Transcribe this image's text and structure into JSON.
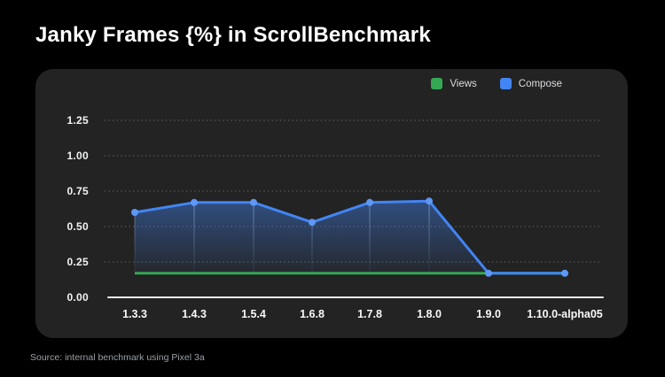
{
  "title": "Janky Frames {%} in ScrollBenchmark",
  "footer": "Source: internal benchmark using Pixel 3a",
  "legend": [
    {
      "label": "Views",
      "color": "#34a853"
    },
    {
      "label": "Compose",
      "color": "#4285f4"
    }
  ],
  "chart_data": {
    "type": "line",
    "title": "Janky Frames {%} in ScrollBenchmark",
    "categories": [
      "1.3.3",
      "1.4.3",
      "1.5.4",
      "1.6.8",
      "1.7.8",
      "1.8.0",
      "1.9.0",
      "1.10.0-alpha05"
    ],
    "series": [
      {
        "name": "Views",
        "color": "#34a853",
        "points": false,
        "values": [
          0.17,
          0.17,
          0.17,
          0.17,
          0.17,
          0.17,
          0.17,
          0.17
        ]
      },
      {
        "name": "Compose",
        "color": "#4285f4",
        "point_color": "#5e97f6",
        "area": true,
        "values": [
          0.6,
          0.67,
          0.67,
          0.53,
          0.67,
          0.68,
          0.17,
          0.17
        ]
      }
    ],
    "yticks": [
      0,
      0.25,
      0.5,
      0.75,
      1.0,
      1.25
    ],
    "ylim": [
      0,
      1.375
    ],
    "grid": "horizontal-dotted",
    "legend_position": "top-right",
    "background": "#232323",
    "axis_color": "#e8eaed"
  }
}
